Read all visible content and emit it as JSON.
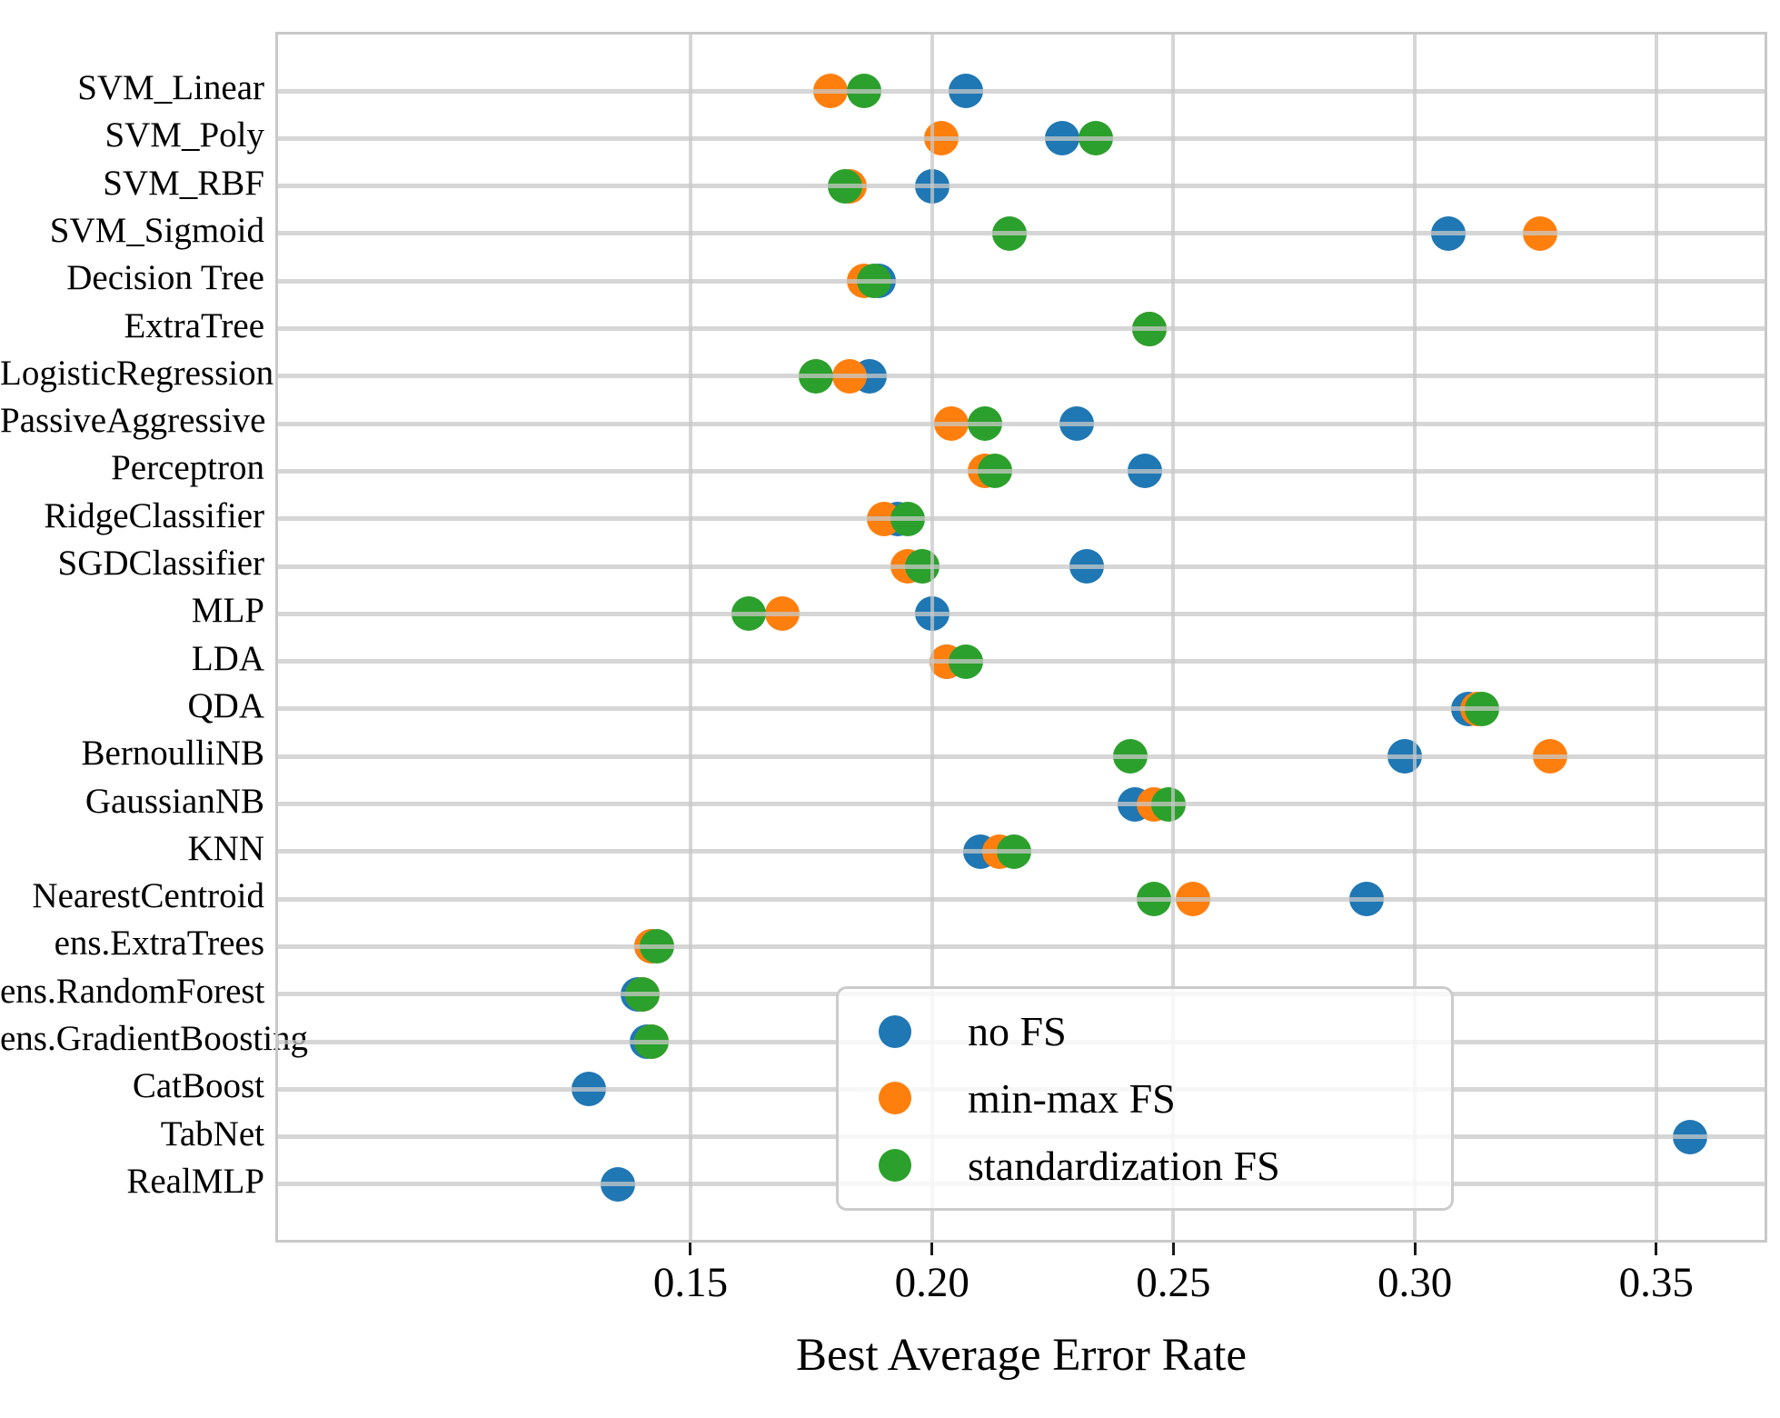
{
  "chart_data": {
    "type": "scatter",
    "orientation": "horizontal-categorical-dotplot",
    "title": "",
    "xlabel": "Best Average Error Rate",
    "ylabel": "",
    "grid": true,
    "xlim": [
      0.064,
      0.373
    ],
    "x_ticks": [
      0.15,
      0.2,
      0.25,
      0.3,
      0.35
    ],
    "x_tick_labels": [
      "0.15",
      "0.20",
      "0.25",
      "0.30",
      "0.35"
    ],
    "categories": [
      "SVM_Linear",
      "SVM_Poly",
      "SVM_RBF",
      "SVM_Sigmoid",
      "Decision Tree",
      "ExtraTree",
      "LogisticRegression",
      "PassiveAggressive",
      "Perceptron",
      "RidgeClassifier",
      "SGDClassifier",
      "MLP",
      "LDA",
      "QDA",
      "BernoulliNB",
      "GaussianNB",
      "KNN",
      "NearestCentroid",
      "ens.ExtraTrees",
      "ens.RandomForest",
      "ens.GradientBoosting",
      "CatBoost",
      "TabNet",
      "RealMLP"
    ],
    "series": [
      {
        "name": "no FS",
        "color": "#1f77b4",
        "values": [
          0.207,
          0.227,
          0.2,
          0.307,
          0.189,
          0.245,
          0.187,
          0.23,
          0.244,
          0.193,
          0.232,
          0.2,
          0.203,
          0.311,
          0.298,
          0.242,
          0.21,
          0.29,
          0.142,
          0.139,
          0.141,
          0.129,
          0.357,
          0.135
        ]
      },
      {
        "name": "min-max FS",
        "color": "#ff7f0e",
        "values": [
          0.179,
          0.202,
          0.183,
          0.326,
          0.186,
          0.245,
          0.183,
          0.204,
          0.211,
          0.19,
          0.195,
          0.169,
          0.203,
          0.313,
          0.328,
          0.246,
          0.214,
          0.254,
          0.142,
          0.14,
          0.142,
          null,
          null,
          null
        ]
      },
      {
        "name": "standardization FS",
        "color": "#2ca02c",
        "values": [
          0.186,
          0.234,
          0.182,
          0.216,
          0.188,
          0.245,
          0.176,
          0.211,
          0.213,
          0.195,
          0.198,
          0.162,
          0.207,
          0.314,
          0.241,
          0.249,
          0.217,
          0.246,
          0.143,
          0.14,
          0.142,
          null,
          null,
          null
        ]
      }
    ],
    "legend": {
      "position": "lower center",
      "entries": [
        "no FS",
        "min-max FS",
        "standardization FS"
      ]
    }
  },
  "colors": {
    "background": "#ffffff",
    "gridline": "#c8c8c8",
    "spine": "#c9c9c9",
    "tick": "#1a1a1a",
    "text": "#000000"
  }
}
